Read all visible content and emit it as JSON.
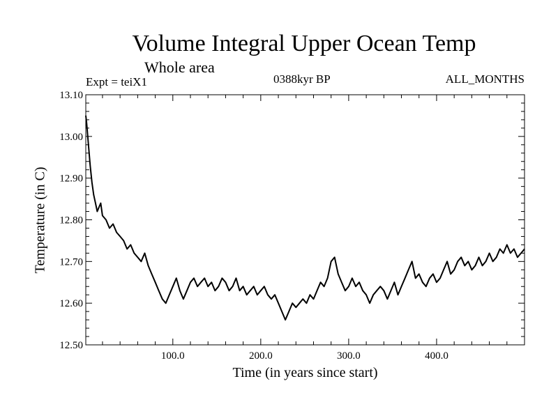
{
  "chart_data": {
    "type": "line",
    "title": "Volume Integral Upper Ocean Temp",
    "subtitle": "Whole area",
    "experiment_label": "Expt = teiX1",
    "period_label": "0388kyr BP",
    "months_label": "ALL_MONTHS",
    "xlabel": "Time (in years since start)",
    "ylabel": "Temperature (in C)",
    "xlim": [
      1,
      500
    ],
    "ylim": [
      12.5,
      13.1
    ],
    "x_ticks": [
      100,
      200,
      300,
      400
    ],
    "x_tick_labels": [
      "100.0",
      "200.0",
      "300.0",
      "400.0"
    ],
    "y_ticks": [
      12.5,
      12.6,
      12.7,
      12.8,
      12.9,
      13.0,
      13.1
    ],
    "y_tick_labels": [
      "12.50",
      "12.60",
      "12.70",
      "12.80",
      "12.90",
      "13.00",
      "13.10"
    ],
    "grid": false,
    "line_color": "#000000",
    "series": [
      {
        "x": [
          1,
          2,
          4,
          6,
          8,
          10,
          12,
          14,
          16,
          18,
          20,
          24,
          28,
          32,
          36,
          40,
          44,
          48,
          52,
          56,
          60,
          64,
          68,
          72,
          76,
          80,
          84,
          88,
          92,
          96,
          100,
          104,
          108,
          112,
          116,
          120,
          124,
          128,
          132,
          136,
          140,
          144,
          148,
          152,
          156,
          160,
          164,
          168,
          172,
          176,
          180,
          184,
          188,
          192,
          196,
          200,
          204,
          208,
          212,
          216,
          220,
          224,
          226,
          228,
          232,
          236,
          240,
          244,
          248,
          252,
          256,
          260,
          264,
          268,
          272,
          276,
          280,
          284,
          288,
          292,
          296,
          300,
          304,
          308,
          312,
          316,
          320,
          324,
          328,
          332,
          336,
          340,
          344,
          348,
          352,
          356,
          360,
          364,
          368,
          372,
          376,
          380,
          384,
          388,
          392,
          396,
          400,
          404,
          408,
          412,
          416,
          420,
          424,
          428,
          432,
          436,
          440,
          444,
          448,
          452,
          456,
          460,
          464,
          468,
          472,
          476,
          480,
          484,
          488,
          492,
          496,
          500
        ],
        "y": [
          13.05,
          13.03,
          12.98,
          12.93,
          12.89,
          12.86,
          12.84,
          12.82,
          12.83,
          12.84,
          12.81,
          12.8,
          12.78,
          12.79,
          12.77,
          12.76,
          12.75,
          12.73,
          12.74,
          12.72,
          12.71,
          12.7,
          12.72,
          12.69,
          12.67,
          12.65,
          12.63,
          12.61,
          12.6,
          12.62,
          12.64,
          12.66,
          12.63,
          12.61,
          12.63,
          12.65,
          12.66,
          12.64,
          12.65,
          12.66,
          12.64,
          12.65,
          12.63,
          12.64,
          12.66,
          12.65,
          12.63,
          12.64,
          12.66,
          12.63,
          12.64,
          12.62,
          12.63,
          12.64,
          12.62,
          12.63,
          12.64,
          12.62,
          12.61,
          12.62,
          12.6,
          12.58,
          12.57,
          12.56,
          12.58,
          12.6,
          12.59,
          12.6,
          12.61,
          12.6,
          12.62,
          12.61,
          12.63,
          12.65,
          12.64,
          12.66,
          12.7,
          12.71,
          12.67,
          12.65,
          12.63,
          12.64,
          12.66,
          12.64,
          12.65,
          12.63,
          12.62,
          12.6,
          12.62,
          12.63,
          12.64,
          12.63,
          12.61,
          12.63,
          12.65,
          12.62,
          12.64,
          12.66,
          12.68,
          12.7,
          12.66,
          12.67,
          12.65,
          12.64,
          12.66,
          12.67,
          12.65,
          12.66,
          12.68,
          12.7,
          12.67,
          12.68,
          12.7,
          12.71,
          12.69,
          12.7,
          12.68,
          12.69,
          12.71,
          12.69,
          12.7,
          12.72,
          12.7,
          12.71,
          12.73,
          12.72,
          12.74,
          12.72,
          12.73,
          12.71,
          12.72,
          12.73
        ]
      }
    ]
  }
}
